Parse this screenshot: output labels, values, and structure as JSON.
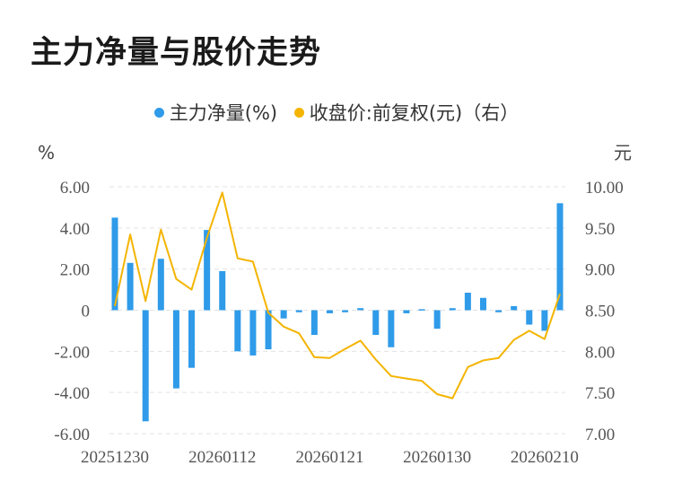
{
  "chart_data": {
    "type": "bar",
    "title": "主力净量与股价走势",
    "legend": [
      {
        "name": "主力净量(%)",
        "color": "#2f9be9"
      },
      {
        "name": "收盘价:前复权(元)（右）",
        "color": "#f4b400"
      }
    ],
    "ylabel_left": "%",
    "ylabel_right": "元",
    "y_left_ticks": [
      "6.00",
      "4.00",
      "2.00",
      "0",
      "-2.00",
      "-4.00",
      "-6.00"
    ],
    "y_right_ticks": [
      "10.00",
      "9.50",
      "9.00",
      "8.50",
      "8.00",
      "7.50",
      "7.00"
    ],
    "ylim_left": [
      -6,
      6
    ],
    "ylim_right": [
      7,
      10
    ],
    "x_tick_labels": [
      "20251230",
      "20260112",
      "20260121",
      "20260130",
      "20260210"
    ],
    "x_tick_index": [
      0,
      7,
      14,
      21,
      28
    ],
    "grid": true,
    "series": [
      {
        "name": "主力净量(%)",
        "type": "bar",
        "axis": "left",
        "values": [
          4.5,
          2.3,
          -5.4,
          2.5,
          -3.8,
          -2.8,
          3.9,
          1.9,
          -2.0,
          -2.2,
          -1.9,
          -0.4,
          -0.1,
          -1.2,
          -0.15,
          -0.1,
          0.1,
          -1.2,
          -1.8,
          -0.15,
          0.05,
          -0.9,
          0.1,
          0.85,
          0.6,
          -0.1,
          0.2,
          -0.7,
          -1.0,
          5.2
        ]
      },
      {
        "name": "收盘价:前复权(元)（右）",
        "type": "line",
        "axis": "right",
        "values": [
          8.55,
          9.42,
          8.61,
          9.48,
          8.88,
          8.75,
          9.38,
          9.93,
          9.13,
          9.09,
          8.47,
          8.3,
          8.22,
          7.93,
          7.92,
          8.03,
          8.13,
          7.9,
          7.7,
          7.67,
          7.64,
          7.48,
          7.43,
          7.81,
          7.89,
          7.92,
          8.14,
          8.25,
          8.15,
          8.7
        ]
      }
    ]
  }
}
